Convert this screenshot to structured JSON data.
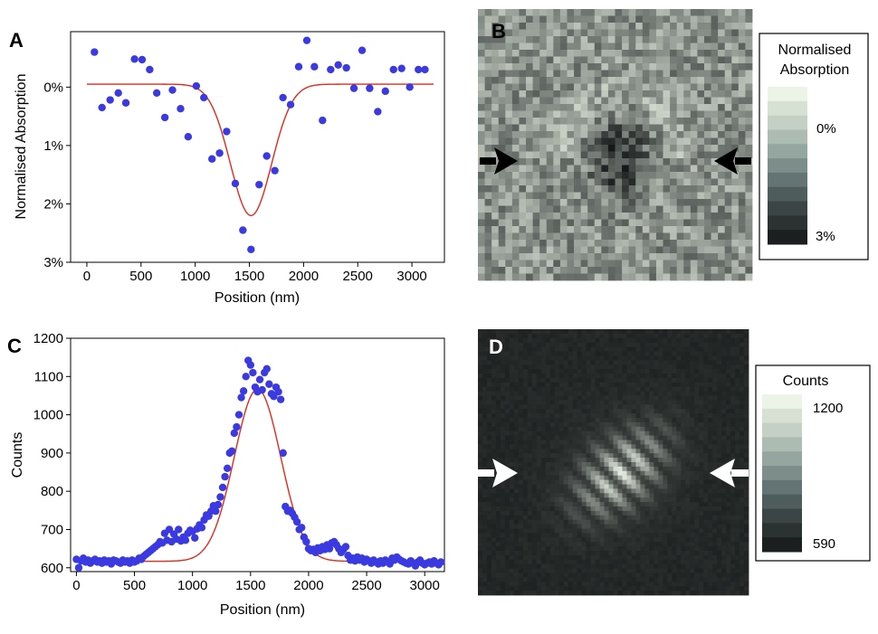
{
  "panel_labels": {
    "a": "A",
    "b": "B",
    "c": "C",
    "d": "D"
  },
  "chart_data": [
    {
      "id": "A",
      "type": "scatter",
      "xlabel": "Position (nm)",
      "ylabel": "Normalised Absorption",
      "xlim": [
        -150,
        3300
      ],
      "ylim": [
        -0.95,
        3.0
      ],
      "y_inverted": true,
      "x_ticks": [
        0,
        500,
        1000,
        1500,
        2000,
        2500,
        3000
      ],
      "x_tick_labels": [
        "0",
        "500",
        "1000",
        "1500",
        "2000",
        "2500",
        "3000"
      ],
      "y_ticks": [
        0,
        1,
        2,
        3
      ],
      "y_tick_labels": [
        "0%",
        "1%",
        "2%",
        "3%"
      ],
      "marker_color": "#3a3ae0",
      "fit_color": "#e02b1e",
      "points": [
        [
          70,
          -0.6
        ],
        [
          140,
          0.35
        ],
        [
          215,
          0.22
        ],
        [
          290,
          0.1
        ],
        [
          360,
          0.27
        ],
        [
          440,
          -0.48
        ],
        [
          510,
          -0.47
        ],
        [
          580,
          -0.3
        ],
        [
          645,
          0.1
        ],
        [
          720,
          0.52
        ],
        [
          790,
          0.05
        ],
        [
          865,
          0.37
        ],
        [
          935,
          0.85
        ],
        [
          1010,
          -0.02
        ],
        [
          1080,
          0.18
        ],
        [
          1155,
          1.23
        ],
        [
          1225,
          1.13
        ],
        [
          1290,
          0.76
        ],
        [
          1370,
          1.65
        ],
        [
          1440,
          2.45
        ],
        [
          1515,
          2.78
        ],
        [
          1590,
          1.67
        ],
        [
          1660,
          1.18
        ],
        [
          1735,
          1.43
        ],
        [
          1810,
          0.18
        ],
        [
          1880,
          0.3
        ],
        [
          1955,
          -0.35
        ],
        [
          2030,
          -0.8
        ],
        [
          2100,
          -0.35
        ],
        [
          2175,
          0.57
        ],
        [
          2250,
          -0.3
        ],
        [
          2320,
          -0.38
        ],
        [
          2395,
          -0.33
        ],
        [
          2465,
          0.02
        ],
        [
          2540,
          -0.63
        ],
        [
          2610,
          0.02
        ],
        [
          2685,
          0.42
        ],
        [
          2755,
          0.07
        ],
        [
          2830,
          -0.3
        ],
        [
          2905,
          -0.32
        ],
        [
          2980,
          0.0
        ],
        [
          3060,
          -0.3
        ],
        [
          3120,
          -0.3
        ]
      ],
      "fit": {
        "model": "gaussian",
        "baseline": -0.05,
        "amplitude": 2.25,
        "center": 1515,
        "sigma": 190,
        "x_range": [
          0,
          3200
        ]
      }
    },
    {
      "id": "C",
      "type": "scatter",
      "xlabel": "Position (nm)",
      "ylabel": "Counts",
      "xlim": [
        -50,
        3170
      ],
      "ylim": [
        590,
        1200
      ],
      "x_ticks": [
        0,
        500,
        1000,
        1500,
        2000,
        2500,
        3000
      ],
      "x_tick_labels": [
        "0",
        "500",
        "1000",
        "1500",
        "2000",
        "2500",
        "3000"
      ],
      "y_ticks": [
        600,
        700,
        800,
        900,
        1000,
        1100,
        1200
      ],
      "y_tick_labels": [
        "600",
        "700",
        "800",
        "900",
        "1000",
        "1100",
        "1200"
      ],
      "marker_color": "#3a3ae0",
      "fit_color": "#e02b1e",
      "fit": {
        "model": "gaussian",
        "baseline": 617,
        "amplitude": 450,
        "center": 1560,
        "sigma": 200,
        "x_range": [
          0,
          3150
        ]
      },
      "points": [
        [
          0,
          622
        ],
        [
          20,
          600
        ],
        [
          40,
          618
        ],
        [
          60,
          625
        ],
        [
          80,
          615
        ],
        [
          100,
          620
        ],
        [
          120,
          612
        ],
        [
          140,
          618
        ],
        [
          160,
          622
        ],
        [
          180,
          615
        ],
        [
          200,
          618
        ],
        [
          220,
          612
        ],
        [
          240,
          620
        ],
        [
          260,
          615
        ],
        [
          280,
          618
        ],
        [
          300,
          610
        ],
        [
          320,
          620
        ],
        [
          340,
          618
        ],
        [
          360,
          615
        ],
        [
          380,
          612
        ],
        [
          400,
          620
        ],
        [
          420,
          615
        ],
        [
          440,
          618
        ],
        [
          460,
          612
        ],
        [
          480,
          620
        ],
        [
          500,
          615
        ],
        [
          520,
          618
        ],
        [
          540,
          625
        ],
        [
          560,
          622
        ],
        [
          580,
          630
        ],
        [
          600,
          635
        ],
        [
          620,
          640
        ],
        [
          640,
          645
        ],
        [
          660,
          650
        ],
        [
          680,
          655
        ],
        [
          700,
          660
        ],
        [
          720,
          668
        ],
        [
          740,
          665
        ],
        [
          760,
          690
        ],
        [
          780,
          672
        ],
        [
          800,
          700
        ],
        [
          820,
          668
        ],
        [
          840,
          688
        ],
        [
          860,
          675
        ],
        [
          880,
          700
        ],
        [
          900,
          670
        ],
        [
          920,
          680
        ],
        [
          940,
          672
        ],
        [
          960,
          690
        ],
        [
          980,
          698
        ],
        [
          1000,
          695
        ],
        [
          1020,
          678
        ],
        [
          1040,
          702
        ],
        [
          1060,
          712
        ],
        [
          1080,
          705
        ],
        [
          1100,
          725
        ],
        [
          1120,
          738
        ],
        [
          1140,
          735
        ],
        [
          1160,
          748
        ],
        [
          1180,
          762
        ],
        [
          1200,
          748
        ],
        [
          1220,
          765
        ],
        [
          1240,
          785
        ],
        [
          1260,
          810
        ],
        [
          1280,
          838
        ],
        [
          1300,
          860
        ],
        [
          1320,
          900
        ],
        [
          1340,
          905
        ],
        [
          1360,
          952
        ],
        [
          1380,
          968
        ],
        [
          1400,
          1000
        ],
        [
          1420,
          1045
        ],
        [
          1440,
          1062
        ],
        [
          1460,
          1100
        ],
        [
          1480,
          1142
        ],
        [
          1500,
          1130
        ],
        [
          1520,
          1110
        ],
        [
          1540,
          1072
        ],
        [
          1560,
          1060
        ],
        [
          1580,
          1092
        ],
        [
          1600,
          1065
        ],
        [
          1620,
          1110
        ],
        [
          1640,
          1120
        ],
        [
          1660,
          1080
        ],
        [
          1680,
          1055
        ],
        [
          1700,
          1048
        ],
        [
          1720,
          1072
        ],
        [
          1740,
          1060
        ],
        [
          1760,
          1040
        ],
        [
          1780,
          900
        ],
        [
          1800,
          760
        ],
        [
          1820,
          748
        ],
        [
          1840,
          750
        ],
        [
          1860,
          742
        ],
        [
          1880,
          732
        ],
        [
          1900,
          720
        ],
        [
          1920,
          700
        ],
        [
          1940,
          705
        ],
        [
          1960,
          680
        ],
        [
          1980,
          668
        ],
        [
          2000,
          650
        ],
        [
          2020,
          645
        ],
        [
          2040,
          648
        ],
        [
          2060,
          640
        ],
        [
          2080,
          652
        ],
        [
          2100,
          645
        ],
        [
          2120,
          655
        ],
        [
          2140,
          648
        ],
        [
          2160,
          660
        ],
        [
          2180,
          650
        ],
        [
          2200,
          665
        ],
        [
          2220,
          668
        ],
        [
          2240,
          660
        ],
        [
          2260,
          650
        ],
        [
          2280,
          640
        ],
        [
          2300,
          648
        ],
        [
          2320,
          655
        ],
        [
          2340,
          632
        ],
        [
          2360,
          620
        ],
        [
          2380,
          625
        ],
        [
          2400,
          618
        ],
        [
          2420,
          628
        ],
        [
          2440,
          620
        ],
        [
          2460,
          625
        ],
        [
          2480,
          615
        ],
        [
          2500,
          622
        ],
        [
          2520,
          618
        ],
        [
          2540,
          612
        ],
        [
          2560,
          620
        ],
        [
          2580,
          615
        ],
        [
          2600,
          610
        ],
        [
          2620,
          618
        ],
        [
          2640,
          612
        ],
        [
          2660,
          620
        ],
        [
          2680,
          615
        ],
        [
          2700,
          610
        ],
        [
          2720,
          625
        ],
        [
          2740,
          620
        ],
        [
          2760,
          628
        ],
        [
          2780,
          622
        ],
        [
          2800,
          618
        ],
        [
          2820,
          615
        ],
        [
          2840,
          612
        ],
        [
          2860,
          610
        ],
        [
          2880,
          618
        ],
        [
          2900,
          612
        ],
        [
          2920,
          605
        ],
        [
          2940,
          615
        ],
        [
          2960,
          620
        ],
        [
          2980,
          612
        ],
        [
          3000,
          608
        ],
        [
          3020,
          612
        ],
        [
          3040,
          615
        ],
        [
          3060,
          610
        ],
        [
          3080,
          618
        ],
        [
          3100,
          612
        ],
        [
          3120,
          608
        ],
        [
          3140,
          615
        ]
      ]
    },
    {
      "id": "B",
      "type": "heatmap",
      "grid": [
        40,
        40
      ],
      "description_palette": "grayscale",
      "colorbar": {
        "title_lines": [
          "Normalised",
          "Absorption"
        ],
        "labels": [
          "0%",
          "3%"
        ],
        "steps": [
          "#ecf4e8",
          "#d6e1d3",
          "#c3d0c3",
          "#acbcb2",
          "#95a5a0",
          "#7c8d8a",
          "#647373",
          "#4f5c5c",
          "#3b4545",
          "#2a3232",
          "#1b1f20"
        ]
      },
      "arrows_color": "#000000"
    },
    {
      "id": "D",
      "type": "heatmap",
      "grid": [
        60,
        60
      ],
      "description_palette": "grayscale",
      "colorbar": {
        "title_lines": [
          "Counts"
        ],
        "labels": [
          "1200",
          "590"
        ],
        "steps": [
          "#ecf4e8",
          "#d6e1d3",
          "#c3d0c3",
          "#acbcb2",
          "#95a5a0",
          "#7c8d8a",
          "#647373",
          "#4f5c5c",
          "#3b4545",
          "#2a3232",
          "#1b1f20"
        ]
      },
      "arrows_color": "#ffffff"
    }
  ]
}
